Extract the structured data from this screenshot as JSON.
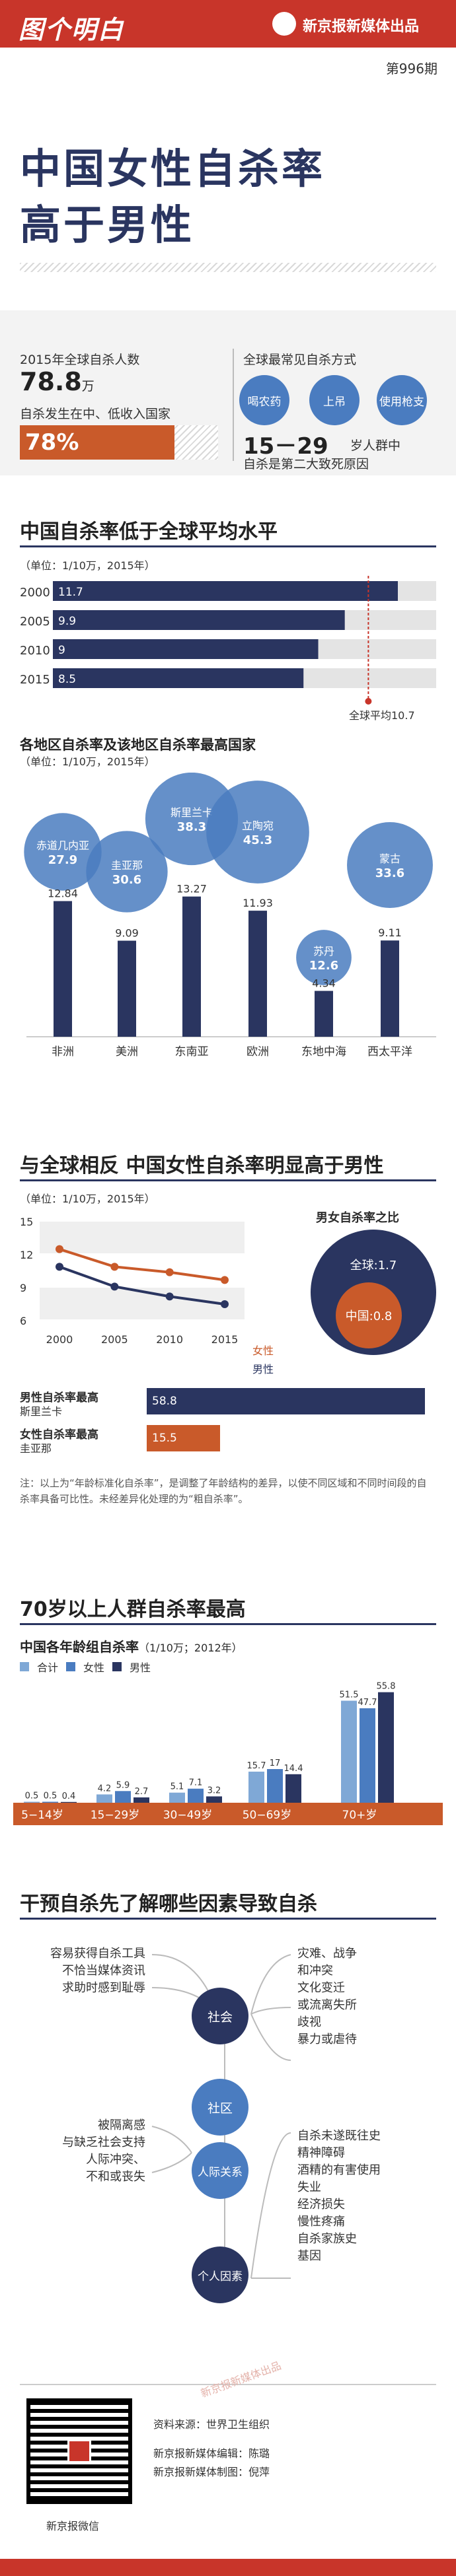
{
  "header": {
    "logo": "图个明白",
    "publisher": "新京报新媒体出品",
    "issue": "第996期"
  },
  "title": {
    "line1": "中国女性自杀率",
    "line2": "高于男性"
  },
  "summary": {
    "global_label": "2015年全球自杀人数",
    "global_value": "78.8",
    "global_unit": "万",
    "lowincome_label": "自杀发生在中、低收入国家",
    "lowincome_value": "78%",
    "lowincome_pct": 78,
    "methods_label": "全球最常见自杀方式",
    "methods": [
      "喝农药",
      "上吊",
      "使用枪支"
    ],
    "age_value": "15－29",
    "age_text1": "岁人群中",
    "age_text2": "自杀是第二大致死原因"
  },
  "section1": {
    "title": "中国自杀率低于全球平均水平",
    "unit": "（单位：1/10万，2015年）",
    "global_avg_label": "全球平均10.7",
    "global_avg": 10.7
  },
  "china_trend": [
    {
      "year": "2000",
      "value": 11.7,
      "label": "11.7"
    },
    {
      "year": "2005",
      "value": 9.9,
      "label": "9.9"
    },
    {
      "year": "2010",
      "value": 9,
      "label": "9"
    },
    {
      "year": "2015",
      "value": 8.5,
      "label": "8.5"
    }
  ],
  "regions_section": {
    "title": "各地区自杀率及该地区自杀率最高国家",
    "unit": "（单位：1/10万，2015年）"
  },
  "chart_data": [
    {
      "type": "bar",
      "title": "中国自杀率低于全球平均水平",
      "categories": [
        "2000",
        "2005",
        "2010",
        "2015"
      ],
      "values": [
        11.7,
        9.9,
        9,
        8.5
      ],
      "reference": {
        "label": "全球平均",
        "value": 10.7
      },
      "xlim": [
        0,
        13
      ]
    },
    {
      "type": "bar",
      "title": "各地区自杀率及该地区自杀率最高国家",
      "categories": [
        "非洲",
        "美洲",
        "东南亚",
        "欧洲",
        "东地中海",
        "西太平洋"
      ],
      "values": [
        12.84,
        9.09,
        13.27,
        11.93,
        4.34,
        9.11
      ],
      "labels": [
        "12.84",
        "9.09",
        "13.27",
        "11.93",
        "4.34",
        "9.11"
      ],
      "top_countries": [
        {
          "name": "赤道几内亚",
          "value": "27.9",
          "v": 27.9
        },
        {
          "name": "圭亚那",
          "value": "30.6",
          "v": 30.6
        },
        {
          "name": "斯里兰卡",
          "value": "38.3",
          "v": 38.3
        },
        {
          "name": "立陶宛",
          "value": "45.3",
          "v": 45.3
        },
        {
          "name": "苏丹",
          "value": "12.6",
          "v": 12.6
        },
        {
          "name": "蒙古",
          "value": "33.6",
          "v": 33.6
        }
      ]
    },
    {
      "type": "line",
      "title": "与全球相反 中国女性自杀率明显高于男性",
      "x": [
        2000,
        2005,
        2010,
        2015
      ],
      "x_labels": [
        "2000",
        "2005",
        "2010",
        "2015"
      ],
      "y_ticks": [
        "15",
        "12",
        "9",
        "6"
      ],
      "ylim": [
        6,
        15
      ],
      "series": [
        {
          "name": "女性",
          "values": [
            12.5,
            10.9,
            10.4,
            9.7
          ],
          "color": "#c95a2a"
        },
        {
          "name": "男性",
          "values": [
            10.9,
            9.1,
            8.2,
            7.5
          ],
          "color": "#2a3560"
        }
      ]
    },
    {
      "type": "bar",
      "title": "中国各年龄组自杀率",
      "categories": [
        "5-14岁",
        "15-29岁",
        "30-49岁",
        "50-69岁",
        "70+岁"
      ],
      "series": [
        {
          "name": "合计",
          "values": [
            0.5,
            4.2,
            5.1,
            15.7,
            51.5
          ],
          "labels": [
            "0.5",
            "4.2",
            "5.1",
            "15.7",
            "51.5"
          ]
        },
        {
          "name": "女性",
          "values": [
            0.5,
            5.9,
            7.1,
            17,
            47.7
          ],
          "labels": [
            "0.5",
            "5.9",
            "7.1",
            "17",
            "47.7"
          ]
        },
        {
          "name": "男性",
          "values": [
            0.4,
            2.7,
            3.2,
            14.4,
            55.8
          ],
          "labels": [
            "0.4",
            "2.7",
            "3.2",
            "14.4",
            "55.8"
          ]
        }
      ],
      "ylim": [
        0,
        60
      ]
    }
  ],
  "section3": {
    "title": "与全球相反 中国女性自杀率明显高于男性",
    "unit": "（单位：1/10万，2015年）",
    "ratio_title": "男女自杀率之比",
    "ratio_global": "全球:1.7",
    "ratio_china": "中国:0.8",
    "legend_female": "女性",
    "legend_male": "男性",
    "male_max_label": "男性自杀率最高",
    "male_max_country": "斯里兰卡",
    "male_max_value": "58.8",
    "male_max_v": 58.8,
    "female_max_label": "女性自杀率最高",
    "female_max_country": "圭亚那",
    "female_max_value": "15.5",
    "female_max_v": 15.5,
    "note": "注：以上为“年龄标准化自杀率”，是调整了年龄结构的差异，以使不同区域和不同时间段的自杀率具备可比性。未经差异化处理的为“粗自杀率”。"
  },
  "section4": {
    "title": "70岁以上人群自杀率最高",
    "subtitle": "中国各年龄组自杀率",
    "unit": "（1/10万；2012年）",
    "legend": [
      "合计",
      "女性",
      "男性"
    ],
    "age_labels": [
      "5−14岁",
      "15−29岁",
      "30−49岁",
      "50−69岁",
      "70+岁"
    ]
  },
  "section5": {
    "title": "干预自杀先了解哪些因素导致自杀",
    "nodes": [
      "社会",
      "社区",
      "人际关系",
      "个人因素"
    ],
    "left_society": [
      "容易获得自杀工具",
      "不恰当媒体资讯",
      "求助时感到耻辱"
    ],
    "left_relation": [
      "被隔离感",
      "与缺乏社会支持",
      "人际冲突、",
      "不和或丧失"
    ],
    "right_society": [
      "灾难、战争",
      "和冲突",
      "文化变迁",
      "或流离失所",
      "歧视",
      "暴力或虐待"
    ],
    "right_personal": [
      "自杀未遂既往史",
      "精神障碍",
      "酒精的有害使用",
      "失业",
      "经济损失",
      "慢性疼痛",
      "自杀家族史",
      "基因"
    ]
  },
  "footer": {
    "source": "资料来源：世界卫生组织",
    "editor": "新京报新媒体编辑：陈璐",
    "designer": "新京报新媒体制图：倪萍",
    "qr_label": "新京报微信",
    "watermark": "新京报新媒体出品"
  },
  "colors": {
    "navy": "#2a3560",
    "orange": "#c95a2a",
    "blue": "#4a7cc0",
    "lightblue": "#7fa8d6",
    "red": "#c8352a"
  }
}
